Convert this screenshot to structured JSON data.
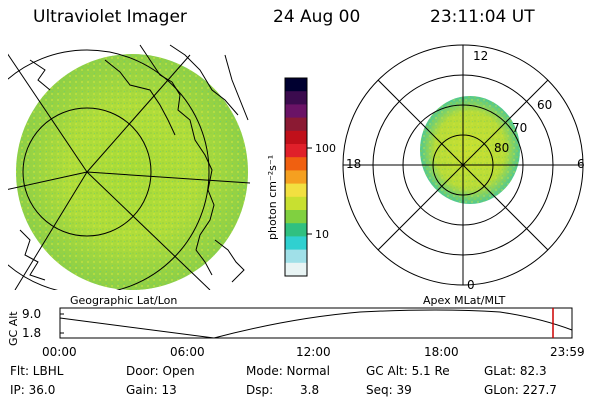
{
  "header": {
    "instrument": "Ultraviolet Imager",
    "date": "24 Aug 00",
    "time": "23:11:04 UT"
  },
  "colorbar": {
    "unit_label": "photon cm⁻²s⁻¹",
    "ticks": [
      "100",
      "10"
    ],
    "colors": [
      "#000030",
      "#3b0b4e",
      "#6a1366",
      "#8b1a33",
      "#c0101a",
      "#e0202a",
      "#f06010",
      "#f5a020",
      "#f2e040",
      "#c8e030",
      "#80d040",
      "#30c080",
      "#30d0d0",
      "#a0e0e8",
      "#e8f4f4"
    ]
  },
  "polar_plot": {
    "mlt_labels": {
      "top": "12",
      "left": "18",
      "right": "6",
      "bottom": "0"
    },
    "lat_labels": [
      "60",
      "70",
      "80"
    ]
  },
  "plot_labels": {
    "left": "Geographic Lat/Lon",
    "right": "Apex MLat/MLT"
  },
  "altitude_plot": {
    "ylabel": "GC Alt",
    "yticks": [
      "9.0",
      "1.8"
    ],
    "xticks": [
      "00:00",
      "06:00",
      "12:00",
      "18:00",
      "23:59"
    ],
    "marker_color": "#cc0000"
  },
  "status": {
    "row1": {
      "flt": "Flt: LBHL",
      "door": "Door: Open",
      "mode": "Mode: Normal",
      "gcalt": "GC Alt: 5.1 Re",
      "glat": "GLat:  82.3"
    },
    "row2": {
      "ip": "IP: 36.0",
      "gain": "Gain: 13",
      "dsp_label": "Dsp:",
      "dsp_value": "3.8",
      "seq": "Seq: 39",
      "glon": "GLon: 227.7"
    }
  }
}
